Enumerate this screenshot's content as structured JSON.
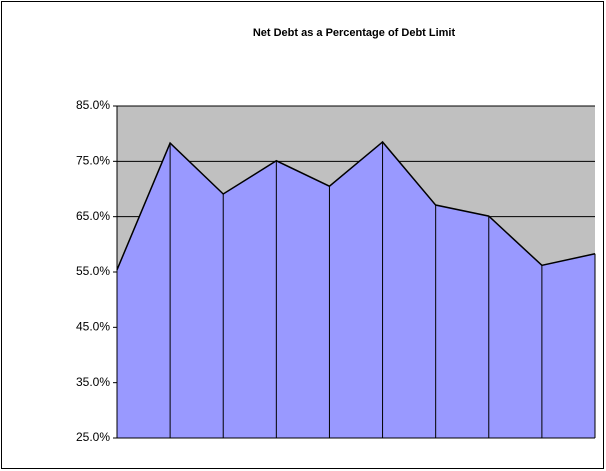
{
  "chart_data": {
    "type": "area",
    "title": "Net Debt as a Percentage of Debt Limit",
    "values": [
      55.4,
      78.3,
      69.1,
      75.1,
      70.5,
      78.5,
      67.1,
      65.1,
      56.2,
      58.3
    ],
    "color": "#9999ff",
    "line_color": "#000000",
    "plot_background": "#c0c0c0",
    "ylim": [
      25,
      85
    ],
    "yticks": [
      {
        "value": 25,
        "label": "25.0%"
      },
      {
        "value": 35,
        "label": "35.0%"
      },
      {
        "value": 45,
        "label": "45.0%"
      },
      {
        "value": 55,
        "label": "55.0%"
      },
      {
        "value": 65,
        "label": "65.0%"
      },
      {
        "value": 75,
        "label": "75.0%"
      },
      {
        "value": 85,
        "label": "85.0%"
      }
    ],
    "grid": true,
    "drop_lines": true
  }
}
